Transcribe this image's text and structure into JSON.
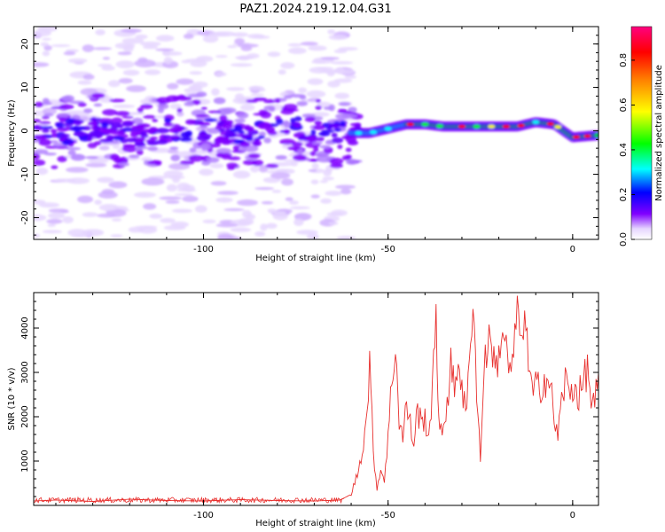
{
  "title": "PAZ1.2024.219.12.04.G31",
  "chart_data": [
    {
      "type": "heatmap",
      "xlabel": "Height of straight line (km)",
      "ylabel": "Frequency (Hz)",
      "xlim": [
        -146,
        7
      ],
      "ylim": [
        -25,
        24
      ],
      "xticks": [
        -100,
        -50,
        0
      ],
      "xtick_labels": [
        "-100",
        "-50",
        "0"
      ],
      "yticks": [
        -20,
        -10,
        0,
        10,
        20
      ],
      "ytick_labels": [
        "-20",
        "-10",
        "0",
        "10",
        "20"
      ],
      "colorbar": {
        "label": "Normalized spectral amplitude",
        "range": [
          0,
          0.95
        ],
        "ticks": [
          0,
          0.2,
          0.4,
          0.6,
          0.8
        ],
        "tick_labels": [
          "0.0",
          "0.2",
          "0.4",
          "0.6",
          "0.8"
        ],
        "colormap": [
          "#ffffff",
          "#e6d6ff",
          "#8000ff",
          "#0000ff",
          "#00ffff",
          "#00ff00",
          "#ffff00",
          "#ff8000",
          "#ff0000",
          "#ff0080"
        ]
      },
      "ridge": {
        "x": [
          -146,
          -140,
          -130,
          -120,
          -110,
          -100,
          -90,
          -80,
          -70,
          -62,
          -55,
          -50,
          -45,
          -40,
          -35,
          -30,
          -25,
          -20,
          -15,
          -10,
          -5,
          0,
          7
        ],
        "freq": [
          -1.5,
          -0.5,
          0.5,
          -1,
          0,
          0.5,
          -1,
          0,
          0.5,
          -0.5,
          -0.5,
          0.5,
          1.5,
          1.5,
          1,
          1,
          1,
          1,
          1,
          2,
          1.5,
          -1.5,
          -1
        ]
      }
    },
    {
      "type": "line",
      "xlabel": "Height of straight line (km)",
      "ylabel": "SNR (10 * v/v)",
      "xlim": [
        -146,
        7
      ],
      "ylim": [
        0,
        4800
      ],
      "xticks": [
        -100,
        -50,
        0
      ],
      "xtick_labels": [
        "-100",
        "-50",
        "0"
      ],
      "yticks": [
        1000,
        2000,
        3000,
        4000
      ],
      "ytick_labels": [
        "1000",
        "2000",
        "3000",
        "4000"
      ],
      "series": [
        {
          "color": "#e8302e",
          "x": [
            -146,
            -140,
            -130,
            -120,
            -110,
            -100,
            -90,
            -80,
            -70,
            -63,
            -60,
            -58,
            -56,
            -55,
            -54,
            -53,
            -52,
            -51,
            -50,
            -49,
            -48,
            -47,
            -46,
            -45,
            -44,
            -43,
            -42,
            -41,
            -40,
            -39,
            -38,
            -37,
            -36.5,
            -36,
            -35,
            -34,
            -33,
            -32,
            -31,
            -30,
            -29,
            -28,
            -27,
            -26,
            -25,
            -24,
            -23,
            -22,
            -21,
            -20,
            -19,
            -18,
            -17,
            -16,
            -15,
            -14,
            -13,
            -12,
            -11,
            -10,
            -9,
            -8,
            -7,
            -6,
            -5,
            -4,
            -3,
            -2,
            -1,
            0,
            1,
            2,
            3,
            4,
            5,
            6,
            7
          ],
          "y": [
            100,
            120,
            90,
            140,
            110,
            100,
            130,
            110,
            100,
            120,
            250,
            800,
            1800,
            3200,
            1200,
            400,
            800,
            600,
            1500,
            2800,
            3600,
            2000,
            1500,
            2300,
            1800,
            1400,
            2200,
            1800,
            2000,
            1600,
            2400,
            4700,
            2200,
            1500,
            1800,
            2400,
            3200,
            2500,
            3400,
            2700,
            2000,
            3000,
            4800,
            2700,
            1000,
            3200,
            3600,
            3800,
            3000,
            3400,
            4000,
            3500,
            3000,
            3200,
            4700,
            3400,
            4500,
            3200,
            2500,
            2600,
            2700,
            2800,
            2900,
            2600,
            2000,
            1500,
            2400,
            2800,
            2500,
            2700,
            2600,
            2500,
            2800,
            3100,
            2400,
            2200,
            3000
          ]
        }
      ]
    }
  ]
}
